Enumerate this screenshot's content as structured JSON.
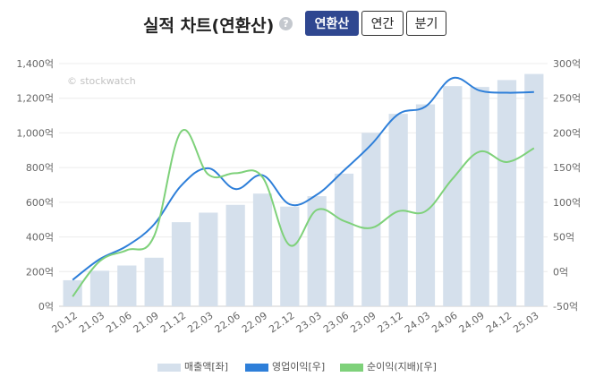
{
  "header": {
    "title": "실적 차트(연환산)",
    "help_glyph": "?",
    "period_buttons": [
      "연환산",
      "연간",
      "분기"
    ],
    "active_button": "연환산"
  },
  "watermark": "© stockwatch",
  "legend": [
    "매출액[좌]",
    "영업이익[우]",
    "순이익(지배)[우]"
  ],
  "chart_data": {
    "type": "bar",
    "categories": [
      "20.12",
      "21.03",
      "21.06",
      "21.09",
      "21.12",
      "22.03",
      "22.06",
      "22.09",
      "22.12",
      "23.03",
      "23.06",
      "23.09",
      "23.12",
      "24.03",
      "24.06",
      "24.09",
      "24.12",
      "25.03"
    ],
    "left_axis": {
      "ylim": [
        0,
        1400
      ],
      "ticks": [
        "0억",
        "200억",
        "400억",
        "600억",
        "800억",
        "1,000억",
        "1,200억",
        "1,400억"
      ]
    },
    "right_axis": {
      "ylim": [
        -50,
        300
      ],
      "ticks": [
        "-50억",
        "0억",
        "50억",
        "100억",
        "150억",
        "200억",
        "250억",
        "300억"
      ]
    },
    "grid": true,
    "series": [
      {
        "name": "매출액[좌]",
        "type": "bar",
        "axis": "left",
        "color": "#d5e0ec",
        "values": [
          150,
          205,
          235,
          280,
          485,
          540,
          585,
          650,
          575,
          635,
          765,
          1000,
          1110,
          1165,
          1270,
          1265,
          1305,
          1340
        ]
      },
      {
        "name": "영업이익[우]",
        "type": "line",
        "axis": "right",
        "color": "#2e7fd9",
        "values": [
          -12,
          18,
          37,
          68,
          124,
          149,
          119,
          139,
          97,
          111,
          146,
          183,
          227,
          238,
          279,
          261,
          258,
          259
        ]
      },
      {
        "name": "순이익(지배)[우]",
        "type": "line",
        "axis": "right",
        "color": "#7ed17a",
        "values": [
          -36,
          15,
          31,
          51,
          202,
          140,
          142,
          136,
          38,
          89,
          73,
          63,
          87,
          87,
          134,
          173,
          158,
          178
        ]
      }
    ]
  }
}
